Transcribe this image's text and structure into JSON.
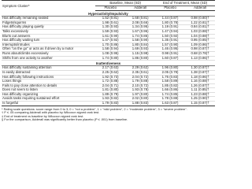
{
  "table": {
    "header": {
      "symptom_cluster": "Symptom Cluster*",
      "baseline": "Baseline, Mean (SD)",
      "end": "End of Treatment, Mean (SD)",
      "subcolumns": [
        "Placebo",
        "Adderall",
        "Placebo",
        "Adderall"
      ]
    },
    "sections": [
      {
        "title": "Hyperactivity/Impulsivity",
        "rows": [
          [
            "Has difficulty remaining seated",
            "1.52 (0.81)",
            "1.68 (0.81)",
            "1.44 (0.87)",
            "0.98 (0.80)†"
          ],
          [
            "Fidgets/squirms",
            "1.98 (0.61)",
            "2.08 (0.66)",
            "1.80 (0.78)",
            "1.22 (0.81)†"
          ],
          [
            "Has difficulty playing quietly",
            "1.30 (0.93)",
            "1.34 (0.95)",
            "1.19 (0.91)",
            "0.84 (0.81)†"
          ],
          [
            "Talks excessively",
            "1.59 (0.93)",
            "1.67 (0.96)",
            "1.47 (0.94)",
            "1.03 (0.88)†"
          ],
          [
            "Blurts out answers",
            "1.61 (0.90)",
            "1.74 (0.85)",
            "1.50 (0.92)",
            "1.04 (0.88)†"
          ],
          [
            "Has difficulty waiting turn",
            "1.47 (0.92)",
            "1.58 (0.90)",
            "1.35 (0.91)",
            "0.95 (0.85)†"
          ],
          [
            "Interrupts/intrudes",
            "1.70 (0.86)",
            "1.80 (0.84)",
            "1.57 (0.90)",
            "1.09 (0.86)†"
          ],
          [
            "Often \"on the go\" or acts as if driven by a motor",
            "1.58 (0.94)",
            "1.69 (0.93)",
            "1.46 (0.95)",
            "0.98 (0.87)†"
          ],
          [
            "Runs about/climbs excessively",
            "1.08 (0.95)",
            "1.15 (0.98)",
            "0.98 (0.91)",
            "0.68 (0.78)†"
          ],
          [
            "Shifts from one activity to another",
            "1.74 (0.80)",
            "1.86 (0.80)",
            "1.60 (0.87)",
            "1.13 (0.86)†"
          ]
        ]
      },
      {
        "title": "Inattentiveness",
        "rows": [
          [
            "Has difficulty sustaining attention",
            "2.17 (0.63)",
            "2.29 (0.62)",
            "1.96 (0.80)",
            "1.30 (0.87)†"
          ],
          [
            "Is easily distracted",
            "2.25 (0.62)",
            "2.35 (0.61)",
            "2.05 (0.78)",
            "1.38 (0.87)†"
          ],
          [
            "Has difficulty following instructions",
            "1.92 (0.73)",
            "2.04 (0.72)",
            "1.76 (0.83)",
            "1.18 (0.86)†"
          ],
          [
            "Loses things",
            "1.72 (0.88)",
            "1.79 (0.88)",
            "1.58 (0.89)",
            "1.16 (0.88)†"
          ],
          [
            "Fails to pay close attention to details",
            "2.04 (0.71)",
            "2.10 (0.72)",
            "1.85 (0.82)",
            "1.26 (0.87)†"
          ],
          [
            "Does not seem to listen",
            "1.81 (0.80)",
            "1.93 (0.78)",
            "1.66 (0.86)",
            "1.11 (0.85)†"
          ],
          [
            "Has difficulty organizing",
            "1.89 (0.79)",
            "1.97 (0.80)",
            "1.74 (0.85)",
            "1.23 (0.88)†"
          ],
          [
            "Avoids tasks requiring sustained effort",
            "1.93 (0.82)",
            "2.02 (0.80)",
            "1.78 (0.88)",
            "1.25 (0.90)†"
          ],
          [
            "Is forgetful",
            "1.79 (0.83)",
            "1.88 (0.83)",
            "1.63 (0.87)",
            "1.15 (0.87)†"
          ]
        ]
      }
    ],
    "footnotes": [
      "* Rating scale questions: score range from 0 to 3; 0 = \"not a problem\", 1 = \"mild problem\", 2 = \"moderate problem\", 3 = \"severe problem\".",
      "† P ≤ .05 comparing Adderall with placebo by Wilcoxon signed rank test.",
      "‡ End of treatment vs baseline by Wilcoxon signed rank test.",
      "§ For the comparison, Adderall was significantly better than placebo (P ≤ .001) from baseline."
    ]
  }
}
